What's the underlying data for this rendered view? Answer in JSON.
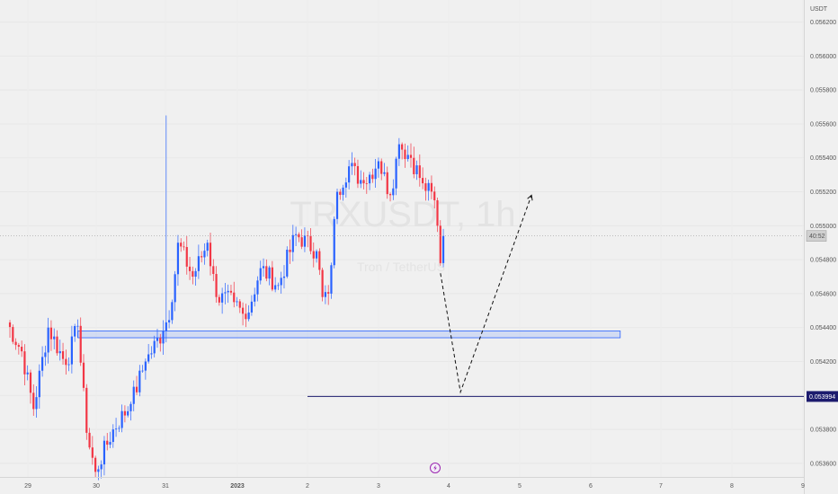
{
  "app": {
    "currency": "USDT",
    "countdown": "40:52"
  },
  "chart_data": {
    "type": "candlestick",
    "title": "",
    "watermark": {
      "symbol": "TRXUSDT, 1h",
      "subtitle": "Tron / TetherUS"
    },
    "y_axis": {
      "unit": "USDT",
      "ylim": [
        0.05352,
        0.05633
      ],
      "ticks": [
        "0.056200",
        "0.056000",
        "0.055800",
        "0.055600",
        "0.055400",
        "0.055200",
        "0.055000",
        "0.054800",
        "0.054600",
        "0.054400",
        "0.054200",
        "0.054000",
        "0.053800",
        "0.053600"
      ]
    },
    "x_axis": {
      "ticks": [
        {
          "label": "29",
          "date": "2022-12-29"
        },
        {
          "label": "30",
          "date": "2022-12-30"
        },
        {
          "label": "31",
          "date": "2022-12-31"
        },
        {
          "label": "2023",
          "date": "2023-01-01"
        },
        {
          "label": "2",
          "date": "2023-01-02"
        },
        {
          "label": "3",
          "date": "2023-01-03"
        },
        {
          "label": "4",
          "date": "2023-01-04"
        },
        {
          "label": "5",
          "date": "2023-01-05"
        },
        {
          "label": "6",
          "date": "2023-01-06"
        },
        {
          "label": "7",
          "date": "2023-01-07"
        },
        {
          "label": "8",
          "date": "2023-01-08"
        },
        {
          "label": "9",
          "date": "2023-01-09"
        }
      ]
    },
    "current_price": {
      "value": 0.05494,
      "label": "40:52"
    },
    "horizontal_line": {
      "value": 0.053994,
      "label": "0.053994",
      "from_date": "2023-01-02"
    },
    "support_zone": {
      "low": 0.05434,
      "high": 0.05438,
      "from_date": "2022-12-29T17:00",
      "to_date": "2023-01-06T10:00"
    },
    "projection_path": [
      {
        "date": "2023-01-03T21:00",
        "value": 0.05472
      },
      {
        "date": "2023-01-04T04:00",
        "value": 0.05402
      },
      {
        "date": "2023-01-05T04:00",
        "value": 0.05518
      }
    ],
    "series_colors": {
      "up": "#2962ff",
      "down": "#f23645"
    },
    "candle_interval_hours": 1,
    "candles_summary": {
      "start": "2022-12-28T17:00",
      "end": "2023-01-03T21:00",
      "pivots": [
        {
          "date": "2022-12-28T17:00",
          "close": 0.05443
        },
        {
          "date": "2022-12-28T22:00",
          "close": 0.05426
        },
        {
          "date": "2022-12-29T02:00",
          "close": 0.05392
        },
        {
          "date": "2022-12-29T07:00",
          "close": 0.0544
        },
        {
          "date": "2022-12-29T13:00",
          "close": 0.05418
        },
        {
          "date": "2022-12-29T17:00",
          "close": 0.05441
        },
        {
          "date": "2022-12-29T20:00",
          "close": 0.05378
        },
        {
          "date": "2022-12-29T23:00",
          "close": 0.05355
        },
        {
          "date": "2022-12-30T05:00",
          "close": 0.0538
        },
        {
          "date": "2022-12-30T11:00",
          "close": 0.05395
        },
        {
          "date": "2022-12-30T16:00",
          "close": 0.0542
        },
        {
          "date": "2022-12-30T22:00",
          "close": 0.05438
        },
        {
          "date": "2022-12-31T01:00",
          "close": 0.05455
        },
        {
          "date": "2022-12-31T03:00",
          "close": 0.0549
        },
        {
          "date": "2022-12-31T08:00",
          "close": 0.0547
        },
        {
          "date": "2022-12-31T13:00",
          "close": 0.0549
        },
        {
          "date": "2022-12-31T16:00",
          "close": 0.05458
        },
        {
          "date": "2022-12-31T22:00",
          "close": 0.05455
        },
        {
          "date": "2023-01-01T02:00",
          "close": 0.05445
        },
        {
          "date": "2023-01-01T07:00",
          "close": 0.05475
        },
        {
          "date": "2023-01-01T13:00",
          "close": 0.05465
        },
        {
          "date": "2023-01-01T19:00",
          "close": 0.05495
        },
        {
          "date": "2023-01-02T02:00",
          "close": 0.05485
        },
        {
          "date": "2023-01-02T04:00",
          "close": 0.05458
        },
        {
          "date": "2023-01-02T06:00",
          "close": 0.0546
        },
        {
          "date": "2023-01-02T09:00",
          "close": 0.0552
        },
        {
          "date": "2023-01-02T13:00",
          "close": 0.05535
        },
        {
          "date": "2023-01-02T18:00",
          "close": 0.05525
        },
        {
          "date": "2023-01-02T23:00",
          "close": 0.05538
        },
        {
          "date": "2023-01-03T03:00",
          "close": 0.05518
        },
        {
          "date": "2023-01-03T06:00",
          "close": 0.05548
        },
        {
          "date": "2023-01-03T10:00",
          "close": 0.0554
        },
        {
          "date": "2023-01-03T14:00",
          "close": 0.05525
        },
        {
          "date": "2023-01-03T18:00",
          "close": 0.05515
        },
        {
          "date": "2023-01-03T19:00",
          "close": 0.055
        },
        {
          "date": "2023-01-03T20:00",
          "close": 0.05478
        },
        {
          "date": "2023-01-03T21:00",
          "close": 0.05494
        }
      ],
      "spikes": [
        {
          "date": "2022-12-30T23:00",
          "high": 0.05565
        }
      ]
    }
  }
}
